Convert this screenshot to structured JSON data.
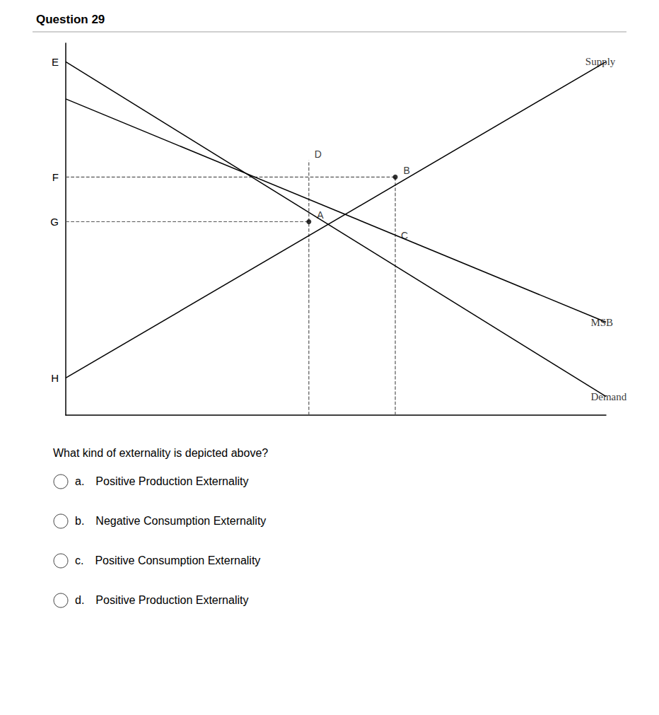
{
  "chart_data": {
    "type": "line",
    "title": "Question 29",
    "xlim": [
      0,
      10
    ],
    "ylim": [
      0,
      10
    ],
    "xticks": [],
    "yticks": [
      {
        "value": 9.5,
        "label": "E"
      },
      {
        "value": 6.4,
        "label": "F"
      },
      {
        "value": 5.2,
        "label": "G"
      },
      {
        "value": 1.0,
        "label": "H"
      }
    ],
    "tick_labels": "y",
    "grid": false,
    "series": [
      {
        "type": "line",
        "color": "#000000",
        "line_style": "solid",
        "x": [
          0,
          10
        ],
        "values": [
          1,
          9.5
        ],
        "label": "Supply",
        "label_at": [
          9.5,
          9.5
        ]
      },
      {
        "type": "line",
        "color": "#000000",
        "line_style": "solid",
        "x": [
          0,
          10
        ],
        "values": [
          9.5,
          0.5
        ],
        "label": "Demand",
        "label_at": [
          9.6,
          0.5
        ]
      },
      {
        "type": "line",
        "color": "#000000",
        "line_style": "solid",
        "x": [
          0,
          10
        ],
        "values": [
          8.5,
          2.5
        ],
        "label": "MSB",
        "label_at": [
          9.6,
          2.5
        ]
      },
      {
        "type": "line",
        "color": "#555555",
        "line_style": "dashed",
        "x": [
          4.5,
          4.5
        ],
        "values": [
          0,
          6.85
        ]
      },
      {
        "type": "line",
        "color": "#555555",
        "line_style": "dashed",
        "x": [
          6.1,
          6.1
        ],
        "values": [
          0,
          6.4
        ]
      },
      {
        "type": "line",
        "color": "#555555",
        "line_style": "dashed",
        "x": [
          0,
          6.1
        ],
        "values": [
          6.4,
          6.4
        ]
      },
      {
        "type": "line",
        "color": "#555555",
        "line_style": "dashed",
        "x": [
          0,
          4.5
        ],
        "values": [
          5.2,
          5.2
        ]
      },
      {
        "type": "scatter",
        "color": "#000000",
        "marker": "circle",
        "x": [
          4.5,
          6.1
        ],
        "values": [
          5.2,
          6.4
        ],
        "point_labels": [
          "A",
          "B"
        ]
      },
      {
        "type": "scatter",
        "color": "#000000",
        "marker": "none",
        "x": [
          4.5,
          6.1
        ],
        "values": [
          6.85,
          4.65
        ],
        "point_labels": [
          "D",
          "C"
        ]
      }
    ],
    "question": "What kind of externality is depicted above?",
    "options": [
      "a. Positive Production Externality",
      "b. Negative Consumption Externality",
      "c. Positive Consumption Externality",
      "d. Positive Production Externality"
    ]
  }
}
